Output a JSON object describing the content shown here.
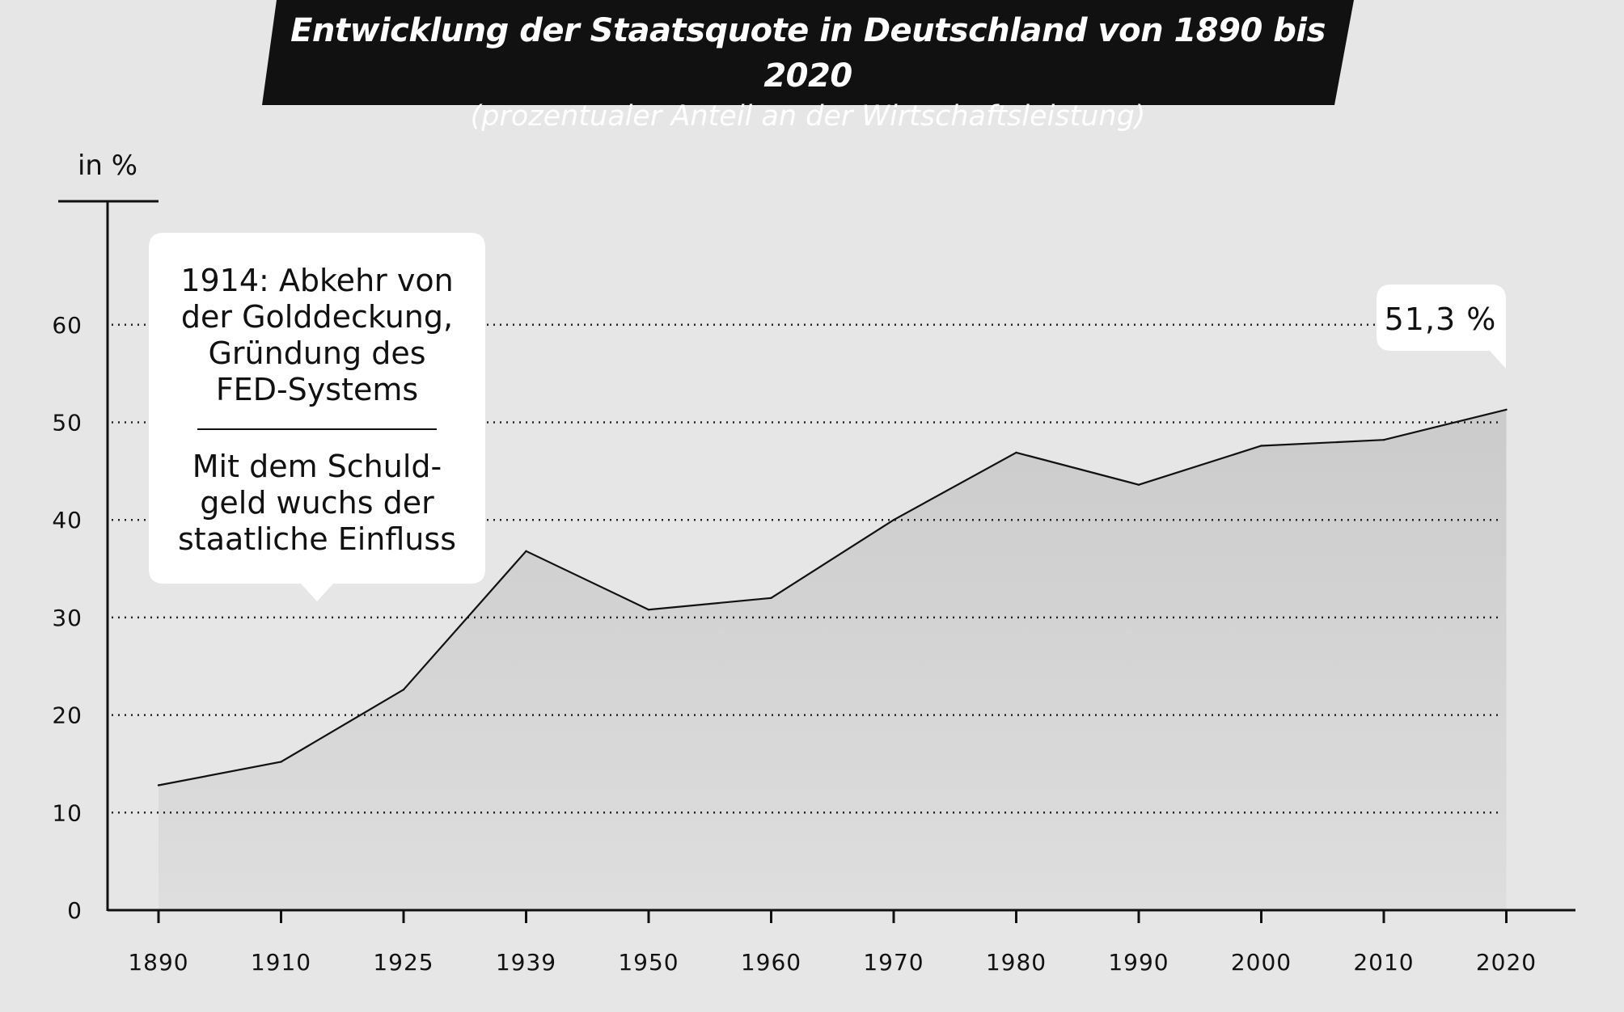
{
  "header": {
    "title": "Entwicklung der Staatsquote in Deutschland von 1890 bis 2020",
    "subtitle": "(prozentualer Anteil an der Wirtschaftsleistung)"
  },
  "colors": {
    "background": "#e6e6e6",
    "banner": "#111111",
    "line": "#111111",
    "area_top": "#cbcbcb",
    "area_bottom": "#dedede",
    "callout": "#ffffff"
  },
  "chart_data": {
    "type": "area",
    "y_unit_label": "in %",
    "categories": [
      "1890",
      "1910",
      "1925",
      "1939",
      "1950",
      "1960",
      "1970",
      "1980",
      "1990",
      "2000",
      "2010",
      "2020"
    ],
    "series": [
      {
        "values": [
          12.8,
          15.2,
          22.6,
          36.8,
          30.8,
          32.0,
          40.0,
          46.9,
          43.6,
          47.6,
          48.2,
          51.3
        ]
      }
    ],
    "y_ticks": [
      0,
      10,
      20,
      30,
      40,
      50,
      60
    ],
    "ylim": [
      0,
      70
    ],
    "grid": "dotted horizontal lines at 10 to 60"
  },
  "annotations": {
    "end_value_label": "51,3 %",
    "event_callout": {
      "lines_top": [
        "1914: Abkehr von",
        "der Golddeckung,",
        "Gründung des",
        "FED-Systems"
      ],
      "lines_bottom": [
        "Mit dem Schuld-",
        "geld wuchs der",
        "staatliche Einfluss"
      ]
    }
  }
}
